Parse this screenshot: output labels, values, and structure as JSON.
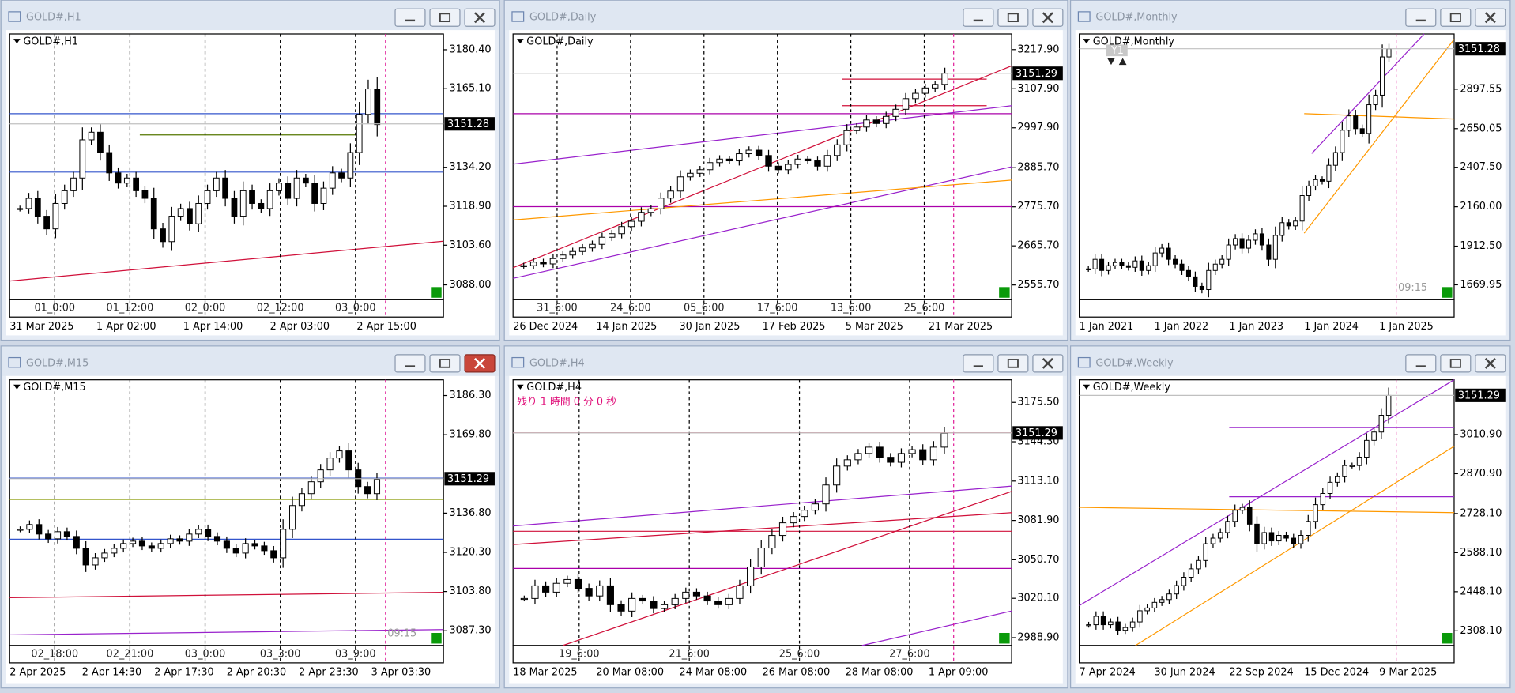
{
  "windows": [
    {
      "title": "GOLD#,H1",
      "label": "GOLD#,H1",
      "price": {
        "value": 3151.28,
        "label": "3151.28"
      },
      "ylim": [
        3082.2,
        3186.6
      ],
      "yticks": [
        {
          "value": 3180.4,
          "label": "3180.40"
        },
        {
          "value": 3165.1,
          "label": "3165.10"
        },
        {
          "value": 3134.2,
          "label": "3134.20"
        },
        {
          "value": 3118.9,
          "label": "3118.90"
        },
        {
          "value": 3103.6,
          "label": "3103.60"
        },
        {
          "value": 3088,
          "label": "3088.00"
        }
      ],
      "time_labels": [
        "31 Mar 2025",
        "1 Apr 02:00",
        "1 Apr 14:00",
        "2 Apr 03:00",
        "2 Apr 15:00"
      ],
      "period_labels": [
        "01_0:00",
        "01_12:00",
        "02_0:00",
        "02_12:00",
        "03_0:00"
      ],
      "closes": [
        3118,
        3122,
        3115,
        3110,
        3120,
        3125,
        3130,
        3145,
        3148,
        3140,
        3132,
        3128,
        3130,
        3125,
        3122,
        3110,
        3105,
        3115,
        3118,
        3112,
        3120,
        3125,
        3130,
        3122,
        3115,
        3125,
        3120,
        3118,
        3125,
        3128,
        3122,
        3130,
        3128,
        3120,
        3126,
        3132,
        3130,
        3140,
        3155,
        3165,
        3151
      ]
    },
    {
      "title": "GOLD#,Daily",
      "label": "GOLD#,Daily",
      "price": {
        "value": 3151.29,
        "label": "3151.29"
      },
      "ylim": [
        2514.45,
        3261.9
      ],
      "yticks": [
        {
          "value": 3217.9,
          "label": "3217.90"
        },
        {
          "value": 3107.9,
          "label": "3107.90"
        },
        {
          "value": 2997.9,
          "label": "2997.90"
        },
        {
          "value": 2885.7,
          "label": "2885.70"
        },
        {
          "value": 2775.7,
          "label": "2775.70"
        },
        {
          "value": 2665.7,
          "label": "2665.70"
        },
        {
          "value": 2555.7,
          "label": "2555.70"
        }
      ],
      "time_labels": [
        "26 Dec 2024",
        "14 Jan 2025",
        "30 Jan 2025",
        "17 Feb 2025",
        "5 Mar 2025",
        "21 Mar 2025"
      ],
      "period_labels": [
        "31_6:00",
        "24_6:00",
        "05_6:00",
        "17_6:00",
        "13_6:00",
        "25_6:00"
      ],
      "closes": [
        2610,
        2620,
        2615,
        2630,
        2640,
        2650,
        2660,
        2670,
        2690,
        2700,
        2720,
        2735,
        2760,
        2770,
        2800,
        2820,
        2860,
        2870,
        2880,
        2900,
        2910,
        2905,
        2925,
        2935,
        2920,
        2890,
        2880,
        2895,
        2910,
        2905,
        2890,
        2920,
        2950,
        2990,
        3000,
        3020,
        3010,
        3030,
        3050,
        3080,
        3095,
        3110,
        3120,
        3151
      ]
    },
    {
      "title": "GOLD#,Monthly",
      "label": "GOLD#,Monthly",
      "price": {
        "value": 3151.28,
        "label": "3151.28"
      },
      "ylim": [
        1577,
        3244
      ],
      "yticks": [
        {
          "value": 2897.55,
          "label": "2897.55"
        },
        {
          "value": 2650.05,
          "label": "2650.05"
        },
        {
          "value": 2407.5,
          "label": "2407.50"
        },
        {
          "value": 2160,
          "label": "2160.00"
        },
        {
          "value": 1912.5,
          "label": "1912.50"
        },
        {
          "value": 1669.95,
          "label": "1669.95"
        }
      ],
      "time_labels": [
        "1 Jan 2021",
        "1 Jan 2022",
        "1 Jan 2023",
        "1 Jan 2024",
        "1 Jan 2025"
      ],
      "button": "Y1",
      "clock": "09:15",
      "closes": [
        1770,
        1830,
        1760,
        1790,
        1810,
        1790,
        1780,
        1820,
        1760,
        1790,
        1870,
        1900,
        1830,
        1800,
        1760,
        1720,
        1660,
        1640,
        1760,
        1800,
        1830,
        1920,
        1960,
        1900,
        1950,
        1990,
        1920,
        1830,
        1980,
        2060,
        2040,
        2070,
        2230,
        2290,
        2330,
        2320,
        2420,
        2500,
        2640,
        2730,
        2650,
        2620,
        2800,
        2860,
        3100,
        3151
      ]
    },
    {
      "title": "GOLD#,M15",
      "label": "GOLD#,M15",
      "price": {
        "value": 3151.29,
        "label": "3151.29"
      },
      "ylim": [
        3081.1,
        3192.9
      ],
      "yticks": [
        {
          "value": 3186.3,
          "label": "3186.30"
        },
        {
          "value": 3169.8,
          "label": "3169.80"
        },
        {
          "value": 3136.8,
          "label": "3136.80"
        },
        {
          "value": 3120.3,
          "label": "3120.30"
        },
        {
          "value": 3103.8,
          "label": "3103.80"
        },
        {
          "value": 3087.3,
          "label": "3087.30"
        }
      ],
      "time_labels": [
        "2 Apr 2025",
        "2 Apr 14:30",
        "2 Apr 17:30",
        "2 Apr 20:30",
        "2 Apr 23:30",
        "3 Apr 03:30"
      ],
      "period_labels": [
        "02_18:00",
        "02_21:00",
        "03_0:00",
        "03_3:00",
        "03_9:00"
      ],
      "clock": "09:15",
      "closes": [
        3130,
        3132,
        3128,
        3126,
        3129,
        3127,
        3122,
        3115,
        3118,
        3120,
        3122,
        3124,
        3125,
        3123,
        3122,
        3124,
        3126,
        3125,
        3128,
        3130,
        3127,
        3125,
        3122,
        3120,
        3124,
        3123,
        3121,
        3118,
        3130,
        3140,
        3145,
        3150,
        3155,
        3160,
        3163,
        3155,
        3148,
        3145,
        3151
      ]
    },
    {
      "title": "GOLD#,H4",
      "label": "GOLD#,H4",
      "price": {
        "value": 3151.29,
        "label": "3151.29"
      },
      "ylim": [
        2982.7,
        3193.4
      ],
      "yticks": [
        {
          "value": 3175.5,
          "label": "3175.50"
        },
        {
          "value": 3144.3,
          "label": "3144.30"
        },
        {
          "value": 3113.1,
          "label": "3113.10"
        },
        {
          "value": 3081.9,
          "label": "3081.90"
        },
        {
          "value": 3050.7,
          "label": "3050.70"
        },
        {
          "value": 3020.1,
          "label": "3020.10"
        },
        {
          "value": 2988.9,
          "label": "2988.90"
        }
      ],
      "time_labels": [
        "18 Mar 2025",
        "20 Mar 08:00",
        "24 Mar 08:00",
        "26 Mar 08:00",
        "28 Mar 08:00",
        "1 Apr 09:00"
      ],
      "period_labels": [
        "19_6:00",
        "21_6:00",
        "25_6:00",
        "27_6:00"
      ],
      "countdown": "残り 1 時間 0 分 0 秒",
      "closes": [
        3020,
        3030,
        3025,
        3032,
        3035,
        3028,
        3022,
        3030,
        3015,
        3010,
        3020,
        3018,
        3012,
        3015,
        3020,
        3025,
        3022,
        3018,
        3015,
        3020,
        3030,
        3045,
        3060,
        3070,
        3080,
        3085,
        3090,
        3095,
        3110,
        3125,
        3130,
        3135,
        3140,
        3132,
        3128,
        3135,
        3138,
        3130,
        3140,
        3151
      ]
    },
    {
      "title": "GOLD#,Weekly",
      "label": "GOLD#,Weekly",
      "price": {
        "value": 3151.29,
        "label": "3151.29"
      },
      "ylim": [
        2255.6,
        3206.9
      ],
      "yticks": [
        {
          "value": 3010.9,
          "label": "3010.90"
        },
        {
          "value": 2870.9,
          "label": "2870.90"
        },
        {
          "value": 2728.1,
          "label": "2728.10"
        },
        {
          "value": 2588.1,
          "label": "2588.10"
        },
        {
          "value": 2448.1,
          "label": "2448.10"
        },
        {
          "value": 2308.1,
          "label": "2308.10"
        }
      ],
      "time_labels": [
        "7 Apr 2024",
        "30 Jun 2024",
        "22 Sep 2024",
        "15 Dec 2024",
        "9 Mar 2025"
      ],
      "closes": [
        2330,
        2360,
        2330,
        2340,
        2310,
        2320,
        2340,
        2380,
        2390,
        2410,
        2420,
        2440,
        2470,
        2500,
        2530,
        2560,
        2620,
        2640,
        2660,
        2700,
        2740,
        2750,
        2690,
        2620,
        2660,
        2630,
        2650,
        2640,
        2620,
        2650,
        2700,
        2760,
        2800,
        2840,
        2860,
        2900,
        2900,
        2930,
        2990,
        3020,
        3080,
        3151
      ]
    }
  ]
}
